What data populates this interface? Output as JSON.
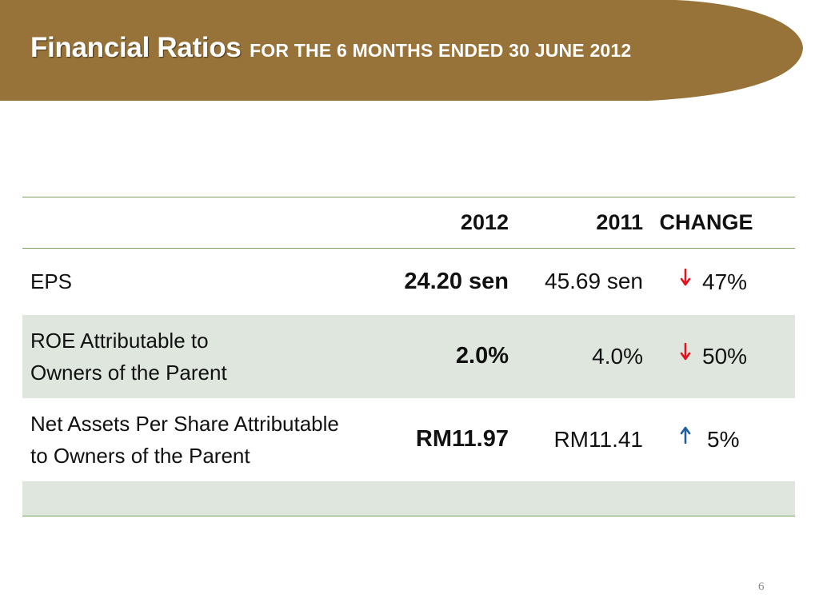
{
  "header": {
    "title": "Financial Ratios",
    "subtitle": "FOR THE 6 MONTHS ENDED 30 JUNE 2012",
    "banner_color": "#977339"
  },
  "table": {
    "columns": [
      "",
      "2012",
      "2011",
      "CHANGE"
    ],
    "rows": [
      {
        "label_line1": "EPS",
        "val_2012": "24.20 sen",
        "val_2011": "45.69 sen",
        "direction": "down",
        "change": "47%"
      },
      {
        "label_line1": "ROE Attributable to",
        "label_line2": "Owners of the Parent",
        "val_2012": "2.0%",
        "val_2011": "4.0%",
        "direction": "down",
        "change": "50%"
      },
      {
        "label_line1": "Net Assets Per Share Attributable",
        "label_line2": "to Owners of the Parent",
        "val_2012": "RM11.97",
        "val_2011": "RM11.41",
        "direction": "up",
        "change": "5%"
      }
    ],
    "row_shade_color": "#dee6de",
    "rule_color": "#7aa05e",
    "arrow_down_color": "#e0141e",
    "arrow_up_color": "#1f5fa0"
  },
  "footer": {
    "page_number": "6"
  }
}
